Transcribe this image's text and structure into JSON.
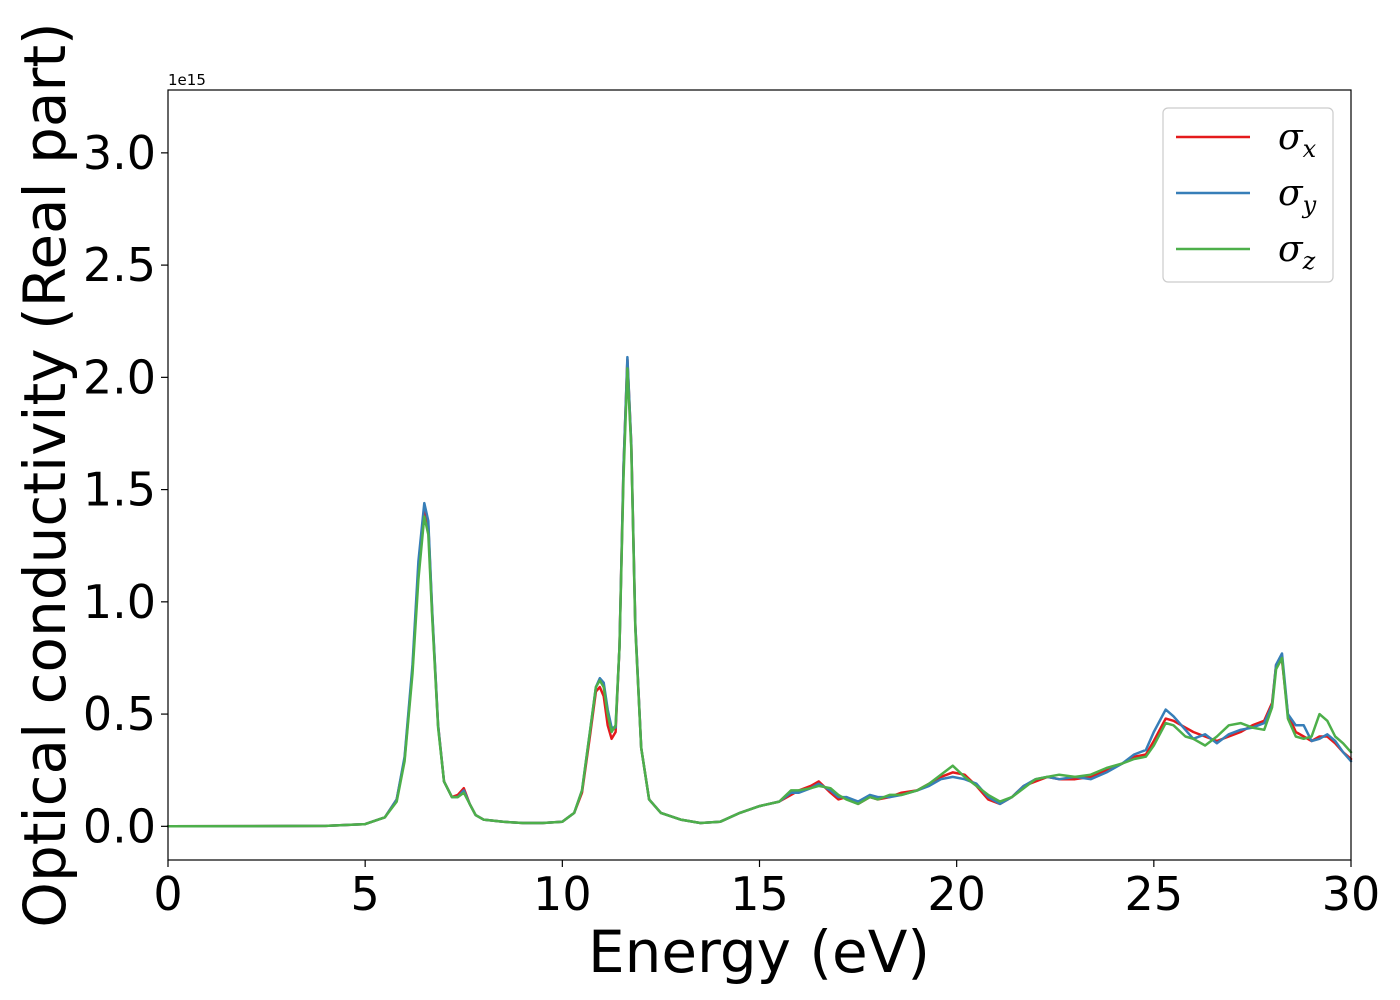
{
  "chart_data": {
    "type": "line",
    "xlabel": "Energy (eV)",
    "ylabel": "Optical conductivity (Real part)",
    "y_offset_label": "1e15",
    "xlim": [
      0,
      30
    ],
    "ylim": [
      -0.15,
      3.28
    ],
    "xticks": [
      0,
      5,
      10,
      15,
      20,
      25,
      30
    ],
    "xtick_labels": [
      "0",
      "5",
      "10",
      "15",
      "20",
      "25",
      "30"
    ],
    "yticks": [
      0.0,
      0.5,
      1.0,
      1.5,
      2.0,
      2.5,
      3.0
    ],
    "ytick_labels": [
      "0.0",
      "0.5",
      "1.0",
      "1.5",
      "2.0",
      "2.5",
      "3.0"
    ],
    "grid": false,
    "legend_position": "top-right",
    "series": [
      {
        "name": "σx",
        "legend_base": "σ",
        "legend_sub": "x",
        "color": "#e41a1c",
        "x": [
          0,
          4,
          5,
          5.5,
          5.8,
          6.0,
          6.2,
          6.35,
          6.5,
          6.6,
          6.7,
          6.85,
          7.0,
          7.2,
          7.35,
          7.5,
          7.65,
          7.8,
          8.0,
          8.5,
          9.0,
          9.5,
          10.0,
          10.3,
          10.5,
          10.7,
          10.85,
          10.95,
          11.05,
          11.15,
          11.25,
          11.35,
          11.45,
          11.55,
          11.65,
          11.75,
          11.85,
          12.0,
          12.2,
          12.5,
          13.0,
          13.5,
          14.0,
          14.5,
          15.0,
          15.5,
          15.8,
          16.0,
          16.3,
          16.5,
          16.8,
          17.0,
          17.2,
          17.5,
          17.8,
          18.0,
          18.3,
          18.6,
          19.0,
          19.3,
          19.6,
          19.9,
          20.2,
          20.5,
          20.8,
          21.1,
          21.4,
          21.7,
          22.0,
          22.3,
          22.6,
          23.0,
          23.4,
          23.8,
          24.2,
          24.5,
          24.8,
          25.0,
          25.3,
          25.5,
          25.8,
          26.0,
          26.3,
          26.6,
          26.9,
          27.2,
          27.5,
          27.8,
          28.0,
          28.1,
          28.25,
          28.4,
          28.6,
          28.8,
          29.0,
          29.2,
          29.4,
          29.6,
          29.8,
          30.0
        ],
        "values": [
          0,
          0.002,
          0.01,
          0.04,
          0.12,
          0.3,
          0.7,
          1.15,
          1.42,
          1.34,
          0.95,
          0.45,
          0.2,
          0.13,
          0.14,
          0.17,
          0.1,
          0.05,
          0.03,
          0.02,
          0.015,
          0.015,
          0.02,
          0.06,
          0.15,
          0.4,
          0.6,
          0.62,
          0.58,
          0.45,
          0.39,
          0.42,
          0.8,
          1.6,
          2.08,
          1.7,
          0.9,
          0.35,
          0.12,
          0.06,
          0.03,
          0.015,
          0.02,
          0.06,
          0.09,
          0.11,
          0.14,
          0.16,
          0.18,
          0.2,
          0.15,
          0.12,
          0.13,
          0.1,
          0.13,
          0.12,
          0.13,
          0.15,
          0.16,
          0.19,
          0.22,
          0.24,
          0.23,
          0.18,
          0.12,
          0.1,
          0.13,
          0.18,
          0.2,
          0.22,
          0.21,
          0.21,
          0.22,
          0.25,
          0.28,
          0.31,
          0.32,
          0.38,
          0.48,
          0.47,
          0.44,
          0.42,
          0.4,
          0.38,
          0.4,
          0.42,
          0.45,
          0.47,
          0.55,
          0.72,
          0.74,
          0.5,
          0.42,
          0.4,
          0.38,
          0.4,
          0.4,
          0.37,
          0.33,
          0.3
        ]
      },
      {
        "name": "σy",
        "legend_base": "σ",
        "legend_sub": "y",
        "color": "#377eb8",
        "x": [
          0,
          4,
          5,
          5.5,
          5.8,
          6.0,
          6.2,
          6.35,
          6.5,
          6.6,
          6.7,
          6.85,
          7.0,
          7.2,
          7.35,
          7.5,
          7.65,
          7.8,
          8.0,
          8.5,
          9.0,
          9.5,
          10.0,
          10.3,
          10.5,
          10.7,
          10.85,
          10.95,
          11.05,
          11.15,
          11.25,
          11.35,
          11.45,
          11.55,
          11.65,
          11.75,
          11.85,
          12.0,
          12.2,
          12.5,
          13.0,
          13.5,
          14.0,
          14.5,
          15.0,
          15.5,
          15.8,
          16.0,
          16.3,
          16.5,
          16.8,
          17.0,
          17.2,
          17.5,
          17.8,
          18.0,
          18.3,
          18.6,
          19.0,
          19.3,
          19.6,
          19.9,
          20.2,
          20.5,
          20.8,
          21.1,
          21.4,
          21.7,
          22.0,
          22.3,
          22.6,
          23.0,
          23.4,
          23.8,
          24.2,
          24.5,
          24.8,
          25.0,
          25.3,
          25.5,
          25.8,
          26.0,
          26.3,
          26.6,
          26.9,
          27.2,
          27.5,
          27.8,
          28.0,
          28.1,
          28.25,
          28.4,
          28.6,
          28.8,
          29.0,
          29.2,
          29.4,
          29.6,
          29.8,
          30.0
        ],
        "values": [
          0,
          0.002,
          0.01,
          0.04,
          0.12,
          0.31,
          0.72,
          1.18,
          1.44,
          1.36,
          0.96,
          0.45,
          0.2,
          0.13,
          0.13,
          0.16,
          0.1,
          0.05,
          0.03,
          0.02,
          0.015,
          0.015,
          0.02,
          0.06,
          0.16,
          0.42,
          0.62,
          0.66,
          0.64,
          0.52,
          0.44,
          0.44,
          0.8,
          1.6,
          2.09,
          1.7,
          0.9,
          0.35,
          0.12,
          0.06,
          0.03,
          0.015,
          0.02,
          0.06,
          0.09,
          0.11,
          0.15,
          0.15,
          0.17,
          0.19,
          0.16,
          0.13,
          0.13,
          0.11,
          0.14,
          0.13,
          0.13,
          0.14,
          0.16,
          0.18,
          0.21,
          0.22,
          0.21,
          0.19,
          0.13,
          0.1,
          0.13,
          0.18,
          0.21,
          0.22,
          0.21,
          0.22,
          0.21,
          0.24,
          0.28,
          0.32,
          0.34,
          0.42,
          0.52,
          0.49,
          0.43,
          0.39,
          0.41,
          0.37,
          0.41,
          0.43,
          0.44,
          0.46,
          0.54,
          0.72,
          0.77,
          0.5,
          0.45,
          0.45,
          0.38,
          0.39,
          0.41,
          0.38,
          0.33,
          0.29
        ]
      },
      {
        "name": "σz",
        "legend_base": "σ",
        "legend_sub": "z",
        "color": "#4daf4a",
        "x": [
          0,
          4,
          5,
          5.5,
          5.8,
          6.0,
          6.2,
          6.35,
          6.5,
          6.6,
          6.7,
          6.85,
          7.0,
          7.2,
          7.35,
          7.5,
          7.65,
          7.8,
          8.0,
          8.5,
          9.0,
          9.5,
          10.0,
          10.3,
          10.5,
          10.7,
          10.85,
          10.95,
          11.05,
          11.15,
          11.25,
          11.35,
          11.45,
          11.55,
          11.65,
          11.75,
          11.85,
          12.0,
          12.2,
          12.5,
          13.0,
          13.5,
          14.0,
          14.5,
          15.0,
          15.5,
          15.8,
          16.0,
          16.3,
          16.5,
          16.8,
          17.0,
          17.2,
          17.5,
          17.8,
          18.0,
          18.3,
          18.6,
          19.0,
          19.3,
          19.6,
          19.9,
          20.2,
          20.5,
          20.8,
          21.1,
          21.4,
          21.7,
          22.0,
          22.3,
          22.6,
          23.0,
          23.4,
          23.8,
          24.2,
          24.5,
          24.8,
          25.0,
          25.3,
          25.5,
          25.8,
          26.0,
          26.3,
          26.6,
          26.9,
          27.2,
          27.5,
          27.8,
          28.0,
          28.1,
          28.25,
          28.4,
          28.6,
          28.8,
          29.0,
          29.2,
          29.4,
          29.6,
          29.8,
          30.0
        ],
        "values": [
          0,
          0.002,
          0.01,
          0.04,
          0.11,
          0.29,
          0.68,
          1.1,
          1.38,
          1.3,
          0.93,
          0.44,
          0.2,
          0.13,
          0.13,
          0.15,
          0.1,
          0.05,
          0.03,
          0.02,
          0.015,
          0.015,
          0.02,
          0.06,
          0.16,
          0.42,
          0.62,
          0.65,
          0.62,
          0.5,
          0.42,
          0.45,
          0.8,
          1.55,
          2.04,
          1.68,
          0.88,
          0.35,
          0.12,
          0.06,
          0.03,
          0.015,
          0.02,
          0.06,
          0.09,
          0.11,
          0.16,
          0.16,
          0.17,
          0.18,
          0.17,
          0.14,
          0.12,
          0.1,
          0.13,
          0.12,
          0.14,
          0.14,
          0.16,
          0.19,
          0.23,
          0.27,
          0.22,
          0.18,
          0.14,
          0.11,
          0.13,
          0.17,
          0.21,
          0.22,
          0.23,
          0.22,
          0.23,
          0.26,
          0.28,
          0.3,
          0.31,
          0.36,
          0.46,
          0.45,
          0.4,
          0.39,
          0.36,
          0.4,
          0.45,
          0.46,
          0.44,
          0.43,
          0.53,
          0.7,
          0.75,
          0.48,
          0.4,
          0.39,
          0.4,
          0.5,
          0.47,
          0.4,
          0.37,
          0.33
        ]
      }
    ]
  }
}
